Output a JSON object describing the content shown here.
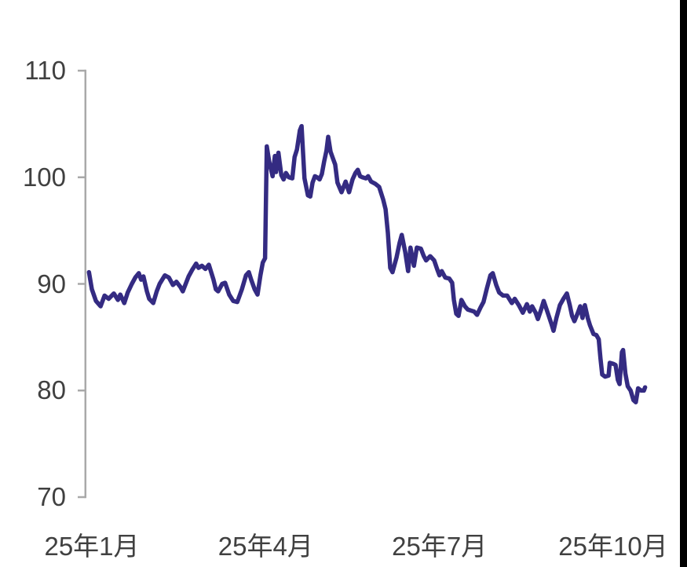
{
  "chart_data": {
    "type": "line",
    "title": "",
    "grid": false,
    "legend": "none",
    "x_axis": {
      "tick_labels": [
        "25年1月",
        "25年4月",
        "25年7月",
        "25年10月"
      ],
      "tick_months": [
        0,
        3,
        6,
        9
      ]
    },
    "y_axis": {
      "tick_labels": [
        "110",
        "100",
        "90",
        "80",
        "70"
      ],
      "tick_values": [
        110,
        100,
        90,
        80,
        70
      ],
      "range": [
        70,
        110
      ]
    },
    "series": [
      {
        "color": "#342B82",
        "points": [
          [
            -0.05,
            91.1
          ],
          [
            0.0,
            89.5
          ],
          [
            0.07,
            88.4
          ],
          [
            0.15,
            87.9
          ],
          [
            0.22,
            88.9
          ],
          [
            0.29,
            88.6
          ],
          [
            0.38,
            89.1
          ],
          [
            0.45,
            88.5
          ],
          [
            0.49,
            89.0
          ],
          [
            0.56,
            88.2
          ],
          [
            0.62,
            89.2
          ],
          [
            0.69,
            90.0
          ],
          [
            0.75,
            90.6
          ],
          [
            0.81,
            91.0
          ],
          [
            0.85,
            90.4
          ],
          [
            0.89,
            90.7
          ],
          [
            0.95,
            89.3
          ],
          [
            0.99,
            88.6
          ],
          [
            1.06,
            88.2
          ],
          [
            1.12,
            89.3
          ],
          [
            1.17,
            90.0
          ],
          [
            1.26,
            90.8
          ],
          [
            1.33,
            90.6
          ],
          [
            1.4,
            89.9
          ],
          [
            1.46,
            90.2
          ],
          [
            1.53,
            89.7
          ],
          [
            1.57,
            89.3
          ],
          [
            1.67,
            90.7
          ],
          [
            1.73,
            91.3
          ],
          [
            1.8,
            91.9
          ],
          [
            1.84,
            91.5
          ],
          [
            1.9,
            91.7
          ],
          [
            1.96,
            91.4
          ],
          [
            2.02,
            91.8
          ],
          [
            2.1,
            90.4
          ],
          [
            2.14,
            89.5
          ],
          [
            2.18,
            89.3
          ],
          [
            2.25,
            90.0
          ],
          [
            2.3,
            90.1
          ],
          [
            2.37,
            89.0
          ],
          [
            2.44,
            88.4
          ],
          [
            2.51,
            88.3
          ],
          [
            2.59,
            89.5
          ],
          [
            2.66,
            90.8
          ],
          [
            2.71,
            91.1
          ],
          [
            2.75,
            90.4
          ],
          [
            2.81,
            89.5
          ],
          [
            2.86,
            89.0
          ],
          [
            2.91,
            90.8
          ],
          [
            2.95,
            92.0
          ],
          [
            2.99,
            92.4
          ],
          [
            3.02,
            102.9
          ],
          [
            3.06,
            101.5
          ],
          [
            3.12,
            100.1
          ],
          [
            3.16,
            102.0
          ],
          [
            3.18,
            100.5
          ],
          [
            3.22,
            102.3
          ],
          [
            3.27,
            100.2
          ],
          [
            3.31,
            99.8
          ],
          [
            3.35,
            100.4
          ],
          [
            3.4,
            100.0
          ],
          [
            3.46,
            99.9
          ],
          [
            3.5,
            101.9
          ],
          [
            3.54,
            102.6
          ],
          [
            3.59,
            104.4
          ],
          [
            3.62,
            104.8
          ],
          [
            3.67,
            99.9
          ],
          [
            3.73,
            98.3
          ],
          [
            3.77,
            98.2
          ],
          [
            3.81,
            99.5
          ],
          [
            3.85,
            100.1
          ],
          [
            3.89,
            100.0
          ],
          [
            3.93,
            99.8
          ],
          [
            3.97,
            100.3
          ],
          [
            4.01,
            101.5
          ],
          [
            4.05,
            102.5
          ],
          [
            4.08,
            103.8
          ],
          [
            4.12,
            102.4
          ],
          [
            4.16,
            101.8
          ],
          [
            4.2,
            101.2
          ],
          [
            4.24,
            99.5
          ],
          [
            4.31,
            98.6
          ],
          [
            4.38,
            99.6
          ],
          [
            4.44,
            98.6
          ],
          [
            4.5,
            99.8
          ],
          [
            4.55,
            100.4
          ],
          [
            4.59,
            100.7
          ],
          [
            4.63,
            100.1
          ],
          [
            4.67,
            100.0
          ],
          [
            4.73,
            99.9
          ],
          [
            4.77,
            100.1
          ],
          [
            4.82,
            99.6
          ],
          [
            4.89,
            99.4
          ],
          [
            4.96,
            99.1
          ],
          [
            5.03,
            97.9
          ],
          [
            5.07,
            97.0
          ],
          [
            5.11,
            94.8
          ],
          [
            5.15,
            91.5
          ],
          [
            5.19,
            91.1
          ],
          [
            5.26,
            92.5
          ],
          [
            5.31,
            93.8
          ],
          [
            5.35,
            94.6
          ],
          [
            5.41,
            93.0
          ],
          [
            5.46,
            91.2
          ],
          [
            5.5,
            93.4
          ],
          [
            5.56,
            91.7
          ],
          [
            5.61,
            93.4
          ],
          [
            5.68,
            93.3
          ],
          [
            5.73,
            92.6
          ],
          [
            5.77,
            92.2
          ],
          [
            5.84,
            92.6
          ],
          [
            5.91,
            92.2
          ],
          [
            5.96,
            91.4
          ],
          [
            6.0,
            90.8
          ],
          [
            6.04,
            91.2
          ],
          [
            6.1,
            90.6
          ],
          [
            6.17,
            90.5
          ],
          [
            6.22,
            90.1
          ],
          [
            6.25,
            88.5
          ],
          [
            6.29,
            87.2
          ],
          [
            6.33,
            87.0
          ],
          [
            6.38,
            88.5
          ],
          [
            6.44,
            87.9
          ],
          [
            6.49,
            87.6
          ],
          [
            6.54,
            87.5
          ],
          [
            6.6,
            87.4
          ],
          [
            6.65,
            87.1
          ],
          [
            6.71,
            87.8
          ],
          [
            6.76,
            88.3
          ],
          [
            6.82,
            89.6
          ],
          [
            6.88,
            90.8
          ],
          [
            6.92,
            91.0
          ],
          [
            6.98,
            89.9
          ],
          [
            7.03,
            89.2
          ],
          [
            7.1,
            88.9
          ],
          [
            7.17,
            88.9
          ],
          [
            7.25,
            88.2
          ],
          [
            7.3,
            88.6
          ],
          [
            7.37,
            88.0
          ],
          [
            7.44,
            87.3
          ],
          [
            7.51,
            88.1
          ],
          [
            7.56,
            87.4
          ],
          [
            7.6,
            87.9
          ],
          [
            7.66,
            87.3
          ],
          [
            7.7,
            86.7
          ],
          [
            7.75,
            87.5
          ],
          [
            7.8,
            88.4
          ],
          [
            7.87,
            87.3
          ],
          [
            7.93,
            86.3
          ],
          [
            7.97,
            85.6
          ],
          [
            8.02,
            86.8
          ],
          [
            8.08,
            88.0
          ],
          [
            8.14,
            88.6
          ],
          [
            8.2,
            89.1
          ],
          [
            8.25,
            88.0
          ],
          [
            8.29,
            87.0
          ],
          [
            8.33,
            86.5
          ],
          [
            8.39,
            87.3
          ],
          [
            8.43,
            87.9
          ],
          [
            8.47,
            86.8
          ],
          [
            8.51,
            88.0
          ],
          [
            8.56,
            86.8
          ],
          [
            8.6,
            86.1
          ],
          [
            8.66,
            85.3
          ],
          [
            8.71,
            85.2
          ],
          [
            8.75,
            84.8
          ],
          [
            8.78,
            83.0
          ],
          [
            8.81,
            81.5
          ],
          [
            8.86,
            81.3
          ],
          [
            8.92,
            81.4
          ],
          [
            8.94,
            82.6
          ],
          [
            9.0,
            82.5
          ],
          [
            9.04,
            82.4
          ],
          [
            9.08,
            81.0
          ],
          [
            9.11,
            80.6
          ],
          [
            9.15,
            83.6
          ],
          [
            9.17,
            83.8
          ],
          [
            9.21,
            81.6
          ],
          [
            9.25,
            80.4
          ],
          [
            9.3,
            80.0
          ],
          [
            9.35,
            79.1
          ],
          [
            9.39,
            78.9
          ],
          [
            9.43,
            80.2
          ],
          [
            9.48,
            80.0
          ],
          [
            9.53,
            80.0
          ],
          [
            9.55,
            80.3
          ]
        ]
      }
    ]
  },
  "style": {
    "axis_color": "#A9A9A9",
    "label_color": "#404040",
    "line_color": "#342B82",
    "background": "#FFFFFF",
    "right_bar_color": "#000000"
  }
}
